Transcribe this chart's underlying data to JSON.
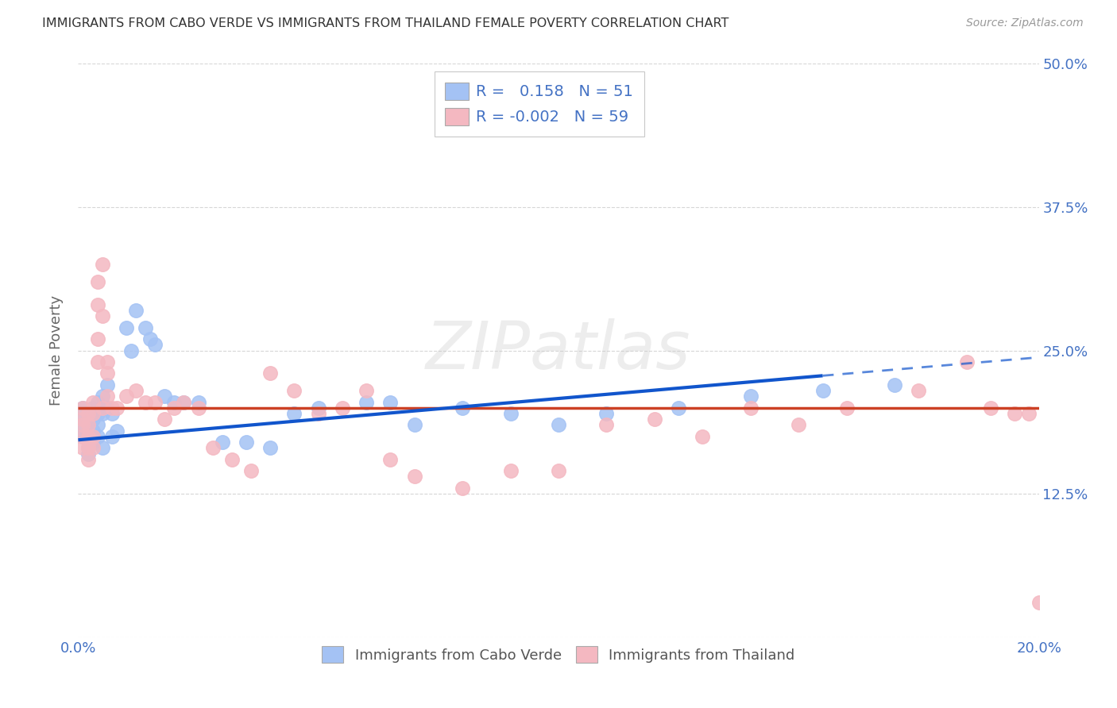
{
  "title": "IMMIGRANTS FROM CABO VERDE VS IMMIGRANTS FROM THAILAND FEMALE POVERTY CORRELATION CHART",
  "source": "Source: ZipAtlas.com",
  "ylabel": "Female Poverty",
  "legend_label1": "Immigrants from Cabo Verde",
  "legend_label2": "Immigrants from Thailand",
  "R1": 0.158,
  "N1": 51,
  "R2": -0.002,
  "N2": 59,
  "xlim": [
    0.0,
    0.2
  ],
  "ylim": [
    0.0,
    0.5
  ],
  "xticks": [
    0.0,
    0.05,
    0.1,
    0.15,
    0.2
  ],
  "yticks": [
    0.0,
    0.125,
    0.25,
    0.375,
    0.5
  ],
  "color1": "#a4c2f4",
  "color2": "#f4b8c1",
  "trend_color1": "#1155cc",
  "trend_color2": "#cc4125",
  "cabo_verde_x": [
    0.001,
    0.001,
    0.001,
    0.001,
    0.002,
    0.002,
    0.002,
    0.002,
    0.002,
    0.003,
    0.003,
    0.003,
    0.003,
    0.004,
    0.004,
    0.004,
    0.004,
    0.005,
    0.005,
    0.005,
    0.006,
    0.006,
    0.007,
    0.007,
    0.008,
    0.01,
    0.011,
    0.012,
    0.014,
    0.015,
    0.016,
    0.018,
    0.02,
    0.022,
    0.025,
    0.03,
    0.035,
    0.04,
    0.045,
    0.05,
    0.06,
    0.065,
    0.07,
    0.08,
    0.09,
    0.1,
    0.11,
    0.125,
    0.14,
    0.155,
    0.17
  ],
  "cabo_verde_y": [
    0.19,
    0.2,
    0.18,
    0.175,
    0.195,
    0.185,
    0.175,
    0.165,
    0.16,
    0.2,
    0.19,
    0.18,
    0.17,
    0.205,
    0.195,
    0.185,
    0.175,
    0.21,
    0.195,
    0.165,
    0.22,
    0.2,
    0.195,
    0.175,
    0.18,
    0.27,
    0.25,
    0.285,
    0.27,
    0.26,
    0.255,
    0.21,
    0.205,
    0.205,
    0.205,
    0.17,
    0.17,
    0.165,
    0.195,
    0.2,
    0.205,
    0.205,
    0.185,
    0.2,
    0.195,
    0.185,
    0.195,
    0.2,
    0.21,
    0.215,
    0.22
  ],
  "thailand_x": [
    0.001,
    0.001,
    0.001,
    0.001,
    0.001,
    0.002,
    0.002,
    0.002,
    0.002,
    0.002,
    0.003,
    0.003,
    0.003,
    0.003,
    0.004,
    0.004,
    0.004,
    0.004,
    0.005,
    0.005,
    0.005,
    0.006,
    0.006,
    0.006,
    0.007,
    0.008,
    0.01,
    0.012,
    0.014,
    0.016,
    0.018,
    0.02,
    0.022,
    0.025,
    0.028,
    0.032,
    0.036,
    0.04,
    0.045,
    0.05,
    0.055,
    0.06,
    0.065,
    0.07,
    0.08,
    0.09,
    0.1,
    0.11,
    0.12,
    0.13,
    0.14,
    0.15,
    0.16,
    0.175,
    0.185,
    0.19,
    0.195,
    0.198,
    0.2
  ],
  "thailand_y": [
    0.19,
    0.2,
    0.185,
    0.175,
    0.165,
    0.195,
    0.185,
    0.175,
    0.165,
    0.155,
    0.205,
    0.195,
    0.175,
    0.165,
    0.29,
    0.31,
    0.26,
    0.24,
    0.325,
    0.28,
    0.2,
    0.24,
    0.23,
    0.21,
    0.2,
    0.2,
    0.21,
    0.215,
    0.205,
    0.205,
    0.19,
    0.2,
    0.205,
    0.2,
    0.165,
    0.155,
    0.145,
    0.23,
    0.215,
    0.195,
    0.2,
    0.215,
    0.155,
    0.14,
    0.13,
    0.145,
    0.145,
    0.185,
    0.19,
    0.175,
    0.2,
    0.185,
    0.2,
    0.215,
    0.24,
    0.2,
    0.195,
    0.195,
    0.03
  ],
  "trend1_x0": 0.0,
  "trend1_y0": 0.172,
  "trend1_x1": 0.155,
  "trend1_y1": 0.228,
  "trend1_dash_x0": 0.155,
  "trend1_dash_y0": 0.228,
  "trend1_dash_x1": 0.2,
  "trend1_dash_y1": 0.244,
  "trend2_x0": 0.0,
  "trend2_y0": 0.2,
  "trend2_x1": 0.2,
  "trend2_y1": 0.2
}
